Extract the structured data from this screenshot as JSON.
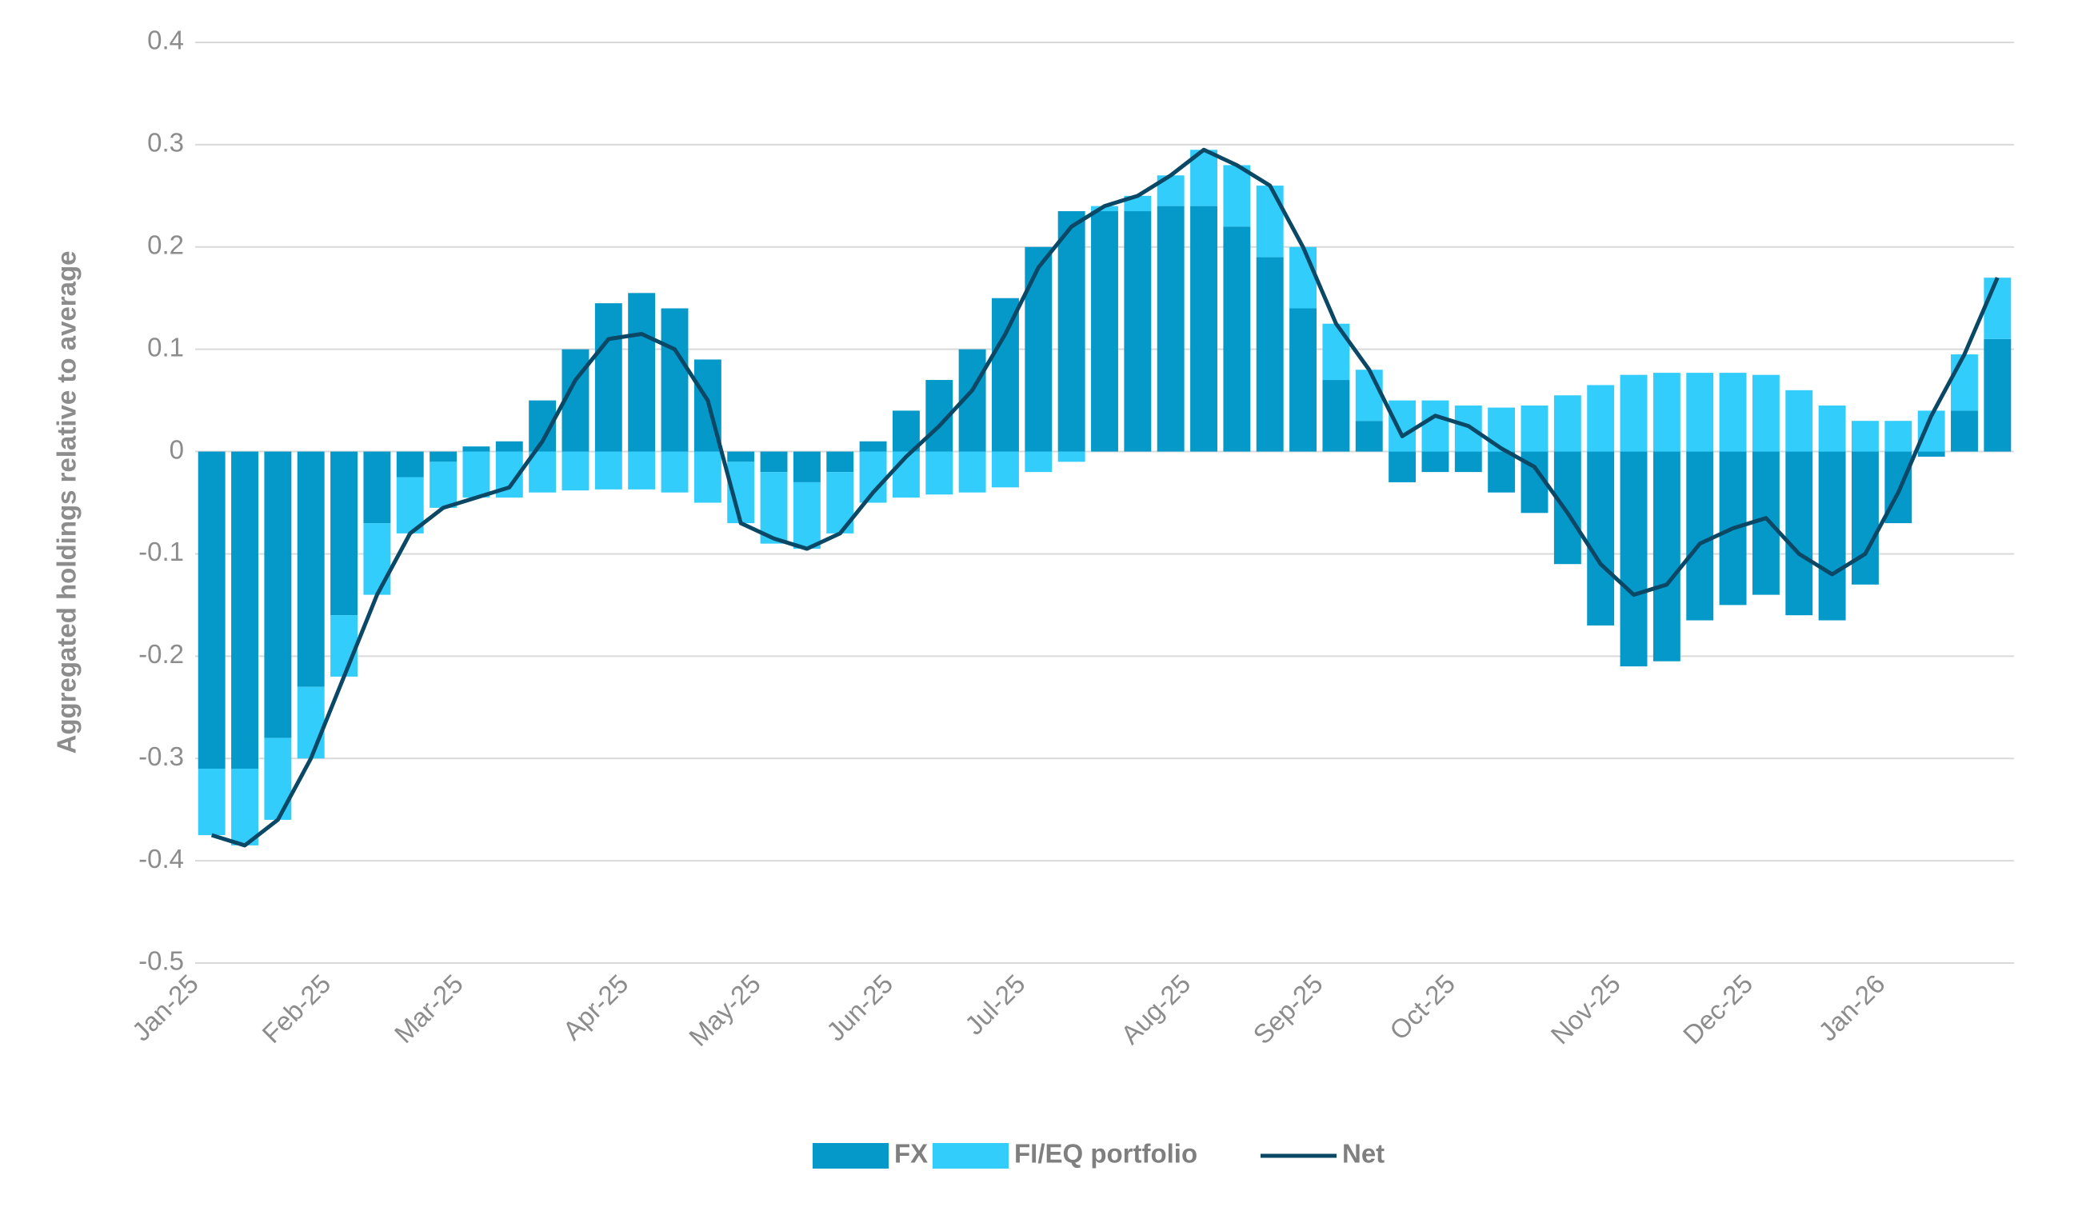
{
  "chart_data": {
    "type": "bar",
    "stacked": true,
    "grid": true,
    "legend": "bottom",
    "y_label": "Aggregated holdings relative to average",
    "categories": [
      "Jan-25",
      null,
      null,
      null,
      "Feb-25",
      null,
      null,
      null,
      "Mar-25",
      null,
      null,
      null,
      null,
      "Apr-25",
      null,
      null,
      null,
      "May-25",
      null,
      null,
      null,
      "Jun-25",
      null,
      null,
      null,
      "Jul-25",
      null,
      null,
      null,
      null,
      "Aug-25",
      null,
      null,
      null,
      "Sep-25",
      null,
      null,
      null,
      "Oct-25",
      null,
      null,
      null,
      null,
      "Nov-25",
      null,
      null,
      null,
      "Dec-25",
      null,
      null,
      null,
      "Jan-26",
      null,
      null,
      null
    ],
    "ylim": [
      -0.5,
      0.4
    ],
    "yticks": [
      -0.5,
      -0.4,
      -0.3,
      -0.2,
      -0.1,
      0,
      0.1,
      0.2,
      0.3,
      0.4
    ],
    "series": [
      {
        "name": "FX",
        "color": "#0499c9",
        "values": [
          -0.31,
          -0.31,
          -0.28,
          -0.23,
          -0.16,
          -0.07,
          -0.025,
          -0.01,
          0.005,
          0.01,
          0.05,
          0.1,
          0.145,
          0.155,
          0.14,
          0.09,
          -0.01,
          -0.02,
          -0.03,
          -0.02,
          0.01,
          0.04,
          0.07,
          0.1,
          0.15,
          0.2,
          0.235,
          0.235,
          0.235,
          0.24,
          0.24,
          0.22,
          0.19,
          0.14,
          0.07,
          0.03,
          -0.03,
          -0.02,
          -0.02,
          -0.04,
          -0.06,
          -0.11,
          -0.17,
          -0.21,
          -0.205,
          -0.165,
          -0.15,
          -0.14,
          -0.16,
          -0.165,
          -0.13,
          -0.07,
          -0.005,
          0.04,
          0.11
        ]
      },
      {
        "name": "FI/EQ portfolio",
        "color": "#33cdfb",
        "values": [
          -0.065,
          -0.075,
          -0.08,
          -0.07,
          -0.06,
          -0.07,
          -0.055,
          -0.045,
          -0.045,
          -0.045,
          -0.04,
          -0.038,
          -0.037,
          -0.037,
          -0.04,
          -0.05,
          -0.06,
          -0.07,
          -0.065,
          -0.06,
          -0.05,
          -0.045,
          -0.042,
          -0.04,
          -0.035,
          -0.02,
          -0.01,
          0.005,
          0.015,
          0.03,
          0.055,
          0.06,
          0.07,
          0.06,
          0.055,
          0.05,
          0.05,
          0.05,
          0.045,
          0.043,
          0.045,
          0.055,
          0.065,
          0.075,
          0.077,
          0.077,
          0.077,
          0.075,
          0.06,
          0.045,
          0.03,
          0.03,
          0.04,
          0.055,
          0.06
        ]
      },
      {
        "name": "Net",
        "type": "line",
        "color": "#0b4866",
        "values": [
          -0.375,
          -0.385,
          -0.36,
          -0.3,
          -0.22,
          -0.14,
          -0.08,
          -0.055,
          -0.045,
          -0.035,
          0.01,
          0.07,
          0.11,
          0.115,
          0.1,
          0.05,
          -0.07,
          -0.085,
          -0.095,
          -0.08,
          -0.04,
          -0.005,
          0.025,
          0.06,
          0.115,
          0.18,
          0.22,
          0.24,
          0.25,
          0.27,
          0.295,
          0.28,
          0.26,
          0.2,
          0.125,
          0.08,
          0.015,
          0.035,
          0.025,
          0.003,
          -0.015,
          -0.06,
          -0.11,
          -0.14,
          -0.13,
          -0.09,
          -0.075,
          -0.065,
          -0.1,
          -0.12,
          -0.1,
          -0.04,
          0.035,
          0.095,
          0.17
        ]
      }
    ]
  }
}
